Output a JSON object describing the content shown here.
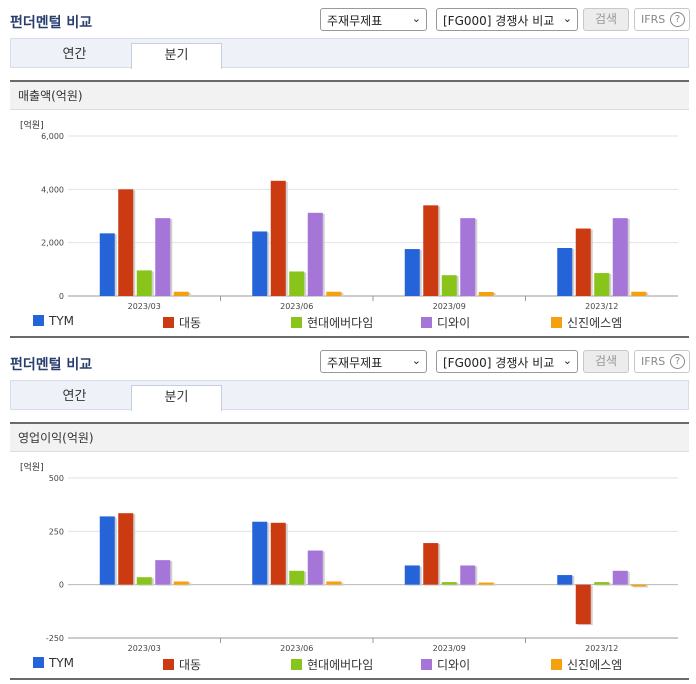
{
  "colors": [
    "#2563d8",
    "#cc3a12",
    "#88c41a",
    "#a576d8",
    "#f5a00f"
  ],
  "panels": [
    {
      "title": "펀더멘털 비교",
      "select_statement": "주재무제표",
      "select_compare": "[FG000] 경쟁사 비교",
      "search_label": "검색",
      "ifrs_label": "IFRS",
      "help_glyph": "?",
      "tabs": [
        "연간",
        "분기"
      ],
      "active_tab": 1,
      "section_title": "매출액(억원)",
      "unit_label": "[억원]"
    },
    {
      "title": "펀더멘털 비교",
      "select_statement": "주재무제표",
      "select_compare": "[FG000] 경쟁사 비교",
      "search_label": "검색",
      "ifrs_label": "IFRS",
      "help_glyph": "?",
      "tabs": [
        "연간",
        "분기"
      ],
      "active_tab": 1,
      "section_title": "영업이익(억원)",
      "unit_label": "[억원]"
    }
  ],
  "chart_data": [
    {
      "type": "bar",
      "title": "매출액(억원)",
      "ylabel": "[억원]",
      "categories": [
        "2023/03",
        "2023/06",
        "2023/09",
        "2023/12"
      ],
      "ylim": [
        0,
        6000
      ],
      "yticks": [
        0,
        2000,
        4000,
        6000
      ],
      "ytick_labels": [
        "0",
        "2,000",
        "4,000",
        "6,000"
      ],
      "series": [
        {
          "name": "TYM",
          "values": [
            2350,
            2420,
            1760,
            1800
          ]
        },
        {
          "name": "대동",
          "values": [
            4000,
            4320,
            3400,
            2530
          ]
        },
        {
          "name": "현대에버다임",
          "values": [
            960,
            920,
            780,
            860
          ]
        },
        {
          "name": "디와이",
          "values": [
            2920,
            3120,
            2920,
            2920
          ]
        },
        {
          "name": "신진에스엠",
          "values": [
            160,
            160,
            150,
            160
          ]
        }
      ]
    },
    {
      "type": "bar",
      "title": "영업이익(억원)",
      "ylabel": "[억원]",
      "categories": [
        "2023/03",
        "2023/06",
        "2023/09",
        "2023/12"
      ],
      "ylim": [
        -250,
        500
      ],
      "yticks": [
        -250,
        0,
        250,
        500
      ],
      "ytick_labels": [
        "-250",
        "0",
        "250",
        "500"
      ],
      "series": [
        {
          "name": "TYM",
          "values": [
            320,
            295,
            90,
            45
          ]
        },
        {
          "name": "대동",
          "values": [
            335,
            290,
            195,
            -185
          ]
        },
        {
          "name": "현대에버다임",
          "values": [
            35,
            65,
            12,
            12
          ]
        },
        {
          "name": "디와이",
          "values": [
            115,
            160,
            90,
            65
          ]
        },
        {
          "name": "신진에스엠",
          "values": [
            15,
            15,
            10,
            -8
          ]
        }
      ]
    }
  ]
}
